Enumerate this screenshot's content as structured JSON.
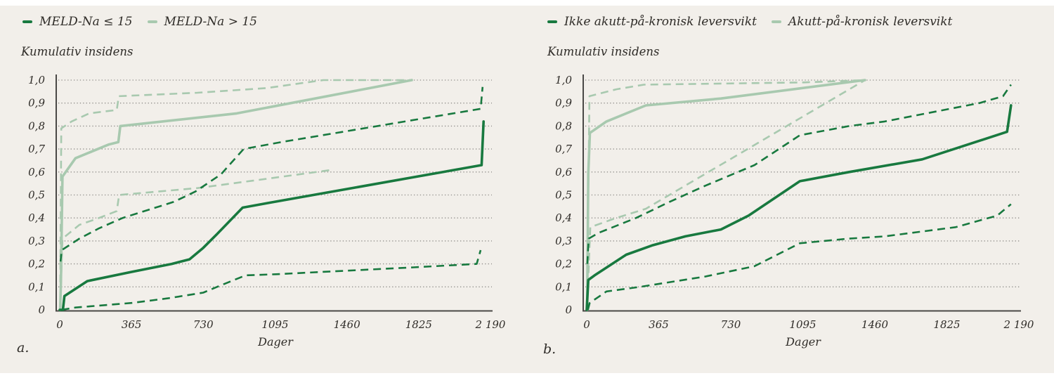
{
  "colors": {
    "page_background": "#ffffff",
    "panel_background": "#f2efea",
    "dark_green": "#18793f",
    "light_green": "#a8c9af",
    "gridline": "#8f8d89",
    "axis": "#4a4846",
    "text": "#2f2c28"
  },
  "panel_labels": {
    "a": "a.",
    "b": "b."
  },
  "chart_data": [
    {
      "type": "line",
      "id": "a",
      "panel_label": "a.",
      "ylabel": "Kumulativ insidens",
      "xlabel": "Dager",
      "xlim": [
        0,
        2190
      ],
      "ylim": [
        0,
        1
      ],
      "grid": "horizontal-dotted",
      "x_ticks": [
        0,
        365,
        730,
        1095,
        1460,
        1825,
        2190
      ],
      "x_tick_labels": [
        "0",
        "365",
        "730",
        "1095",
        "1460",
        "1825",
        "2 190"
      ],
      "y_tick_labels": [
        "1,0",
        "0,9",
        "0,8",
        "0,7",
        "0,6",
        "0,5",
        "0,4",
        "0,3",
        "0,2",
        "0,1",
        "0"
      ],
      "legend": [
        {
          "label": "MELD-Na ≤ 15",
          "tone": "dark"
        },
        {
          "label": "MELD-Na > 15",
          "tone": "light"
        }
      ],
      "series": [
        {
          "group": "MELD-Na > 15",
          "role": "ci-upper",
          "tone": "light",
          "line": "dashed",
          "points": [
            [
              3,
              0.12
            ],
            [
              8,
              0.79
            ],
            [
              60,
              0.82
            ],
            [
              150,
              0.855
            ],
            [
              290,
              0.87
            ],
            [
              300,
              0.93
            ],
            [
              700,
              0.945
            ],
            [
              1050,
              0.965
            ],
            [
              1340,
              1.0
            ],
            [
              1790,
              1.0
            ]
          ]
        },
        {
          "group": "MELD-Na > 15",
          "role": "estimate",
          "tone": "light",
          "line": "solid",
          "points": [
            [
              2,
              0
            ],
            [
              6,
              0.12
            ],
            [
              14,
              0.58
            ],
            [
              80,
              0.66
            ],
            [
              250,
              0.72
            ],
            [
              298,
              0.73
            ],
            [
              308,
              0.8
            ],
            [
              900,
              0.855
            ],
            [
              1790,
              1.0
            ]
          ]
        },
        {
          "group": "MELD-Na > 15",
          "role": "ci-lower",
          "tone": "light",
          "line": "dashed",
          "points": [
            [
              4,
              0.05
            ],
            [
              14,
              0.31
            ],
            [
              100,
              0.37
            ],
            [
              200,
              0.4
            ],
            [
              290,
              0.43
            ],
            [
              302,
              0.5
            ],
            [
              700,
              0.53
            ],
            [
              1050,
              0.57
            ],
            [
              1390,
              0.61
            ]
          ]
        },
        {
          "group": "MELD-Na ≤ 15",
          "role": "ci-upper",
          "tone": "dark",
          "line": "dashed",
          "points": [
            [
              4,
              0.21
            ],
            [
              10,
              0.26
            ],
            [
              100,
              0.31
            ],
            [
              200,
              0.355
            ],
            [
              320,
              0.4
            ],
            [
              580,
              0.47
            ],
            [
              690,
              0.515
            ],
            [
              820,
              0.59
            ],
            [
              935,
              0.7
            ],
            [
              1125,
              0.73
            ],
            [
              2140,
              0.875
            ],
            [
              2150,
              0.97
            ]
          ]
        },
        {
          "group": "MELD-Na ≤ 15",
          "role": "estimate",
          "tone": "dark",
          "line": "solid",
          "points": [
            [
              0,
              0
            ],
            [
              16,
              0
            ],
            [
              24,
              0.06
            ],
            [
              140,
              0.125
            ],
            [
              365,
              0.165
            ],
            [
              570,
              0.2
            ],
            [
              660,
              0.22
            ],
            [
              730,
              0.27
            ],
            [
              800,
              0.33
            ],
            [
              930,
              0.445
            ],
            [
              1060,
              0.465
            ],
            [
              2145,
              0.63
            ],
            [
              2155,
              0.82
            ]
          ]
        },
        {
          "group": "MELD-Na ≤ 15",
          "role": "ci-lower",
          "tone": "dark",
          "line": "dashed",
          "points": [
            [
              10,
              0
            ],
            [
              80,
              0.01
            ],
            [
              365,
              0.03
            ],
            [
              550,
              0.05
            ],
            [
              730,
              0.075
            ],
            [
              800,
              0.1
            ],
            [
              945,
              0.15
            ],
            [
              1100,
              0.155
            ],
            [
              1800,
              0.185
            ],
            [
              2120,
              0.2
            ],
            [
              2140,
              0.26
            ]
          ]
        }
      ]
    },
    {
      "type": "line",
      "id": "b",
      "panel_label": "b.",
      "ylabel": "Kumulativ insidens",
      "xlabel": "Dager",
      "xlim": [
        0,
        2190
      ],
      "ylim": [
        0,
        1
      ],
      "grid": "horizontal-dotted",
      "x_ticks": [
        0,
        365,
        730,
        1095,
        1460,
        1825,
        2190
      ],
      "x_tick_labels": [
        "0",
        "365",
        "730",
        "1095",
        "1460",
        "1825",
        "2 190"
      ],
      "y_tick_labels": [
        "1,0",
        "0,9",
        "0,8",
        "0,7",
        "0,6",
        "0,5",
        "0,4",
        "0,3",
        "0,2",
        "0,1",
        "0"
      ],
      "legend": [
        {
          "label": "Ikke akutt-på-kronisk leversvikt",
          "tone": "dark"
        },
        {
          "label": "Akutt-på-kronisk leversvikt",
          "tone": "light"
        }
      ],
      "series": [
        {
          "group": "Akutt-på-kronisk leversvikt",
          "role": "ci-upper",
          "tone": "light",
          "line": "dashed",
          "points": [
            [
              4,
              0.21
            ],
            [
              14,
              0.93
            ],
            [
              150,
              0.96
            ],
            [
              290,
              0.98
            ],
            [
              700,
              0.985
            ],
            [
              1100,
              0.99
            ],
            [
              1410,
              1.0
            ]
          ]
        },
        {
          "group": "Akutt-på-kronisk leversvikt",
          "role": "estimate",
          "tone": "light",
          "line": "solid",
          "points": [
            [
              2,
              0
            ],
            [
              8,
              0.59
            ],
            [
              16,
              0.77
            ],
            [
              100,
              0.82
            ],
            [
              300,
              0.89
            ],
            [
              680,
              0.92
            ],
            [
              1410,
              1.0
            ]
          ]
        },
        {
          "group": "Akutt-på-kronisk leversvikt",
          "role": "ci-lower",
          "tone": "light",
          "line": "dashed",
          "points": [
            [
              4,
              0.05
            ],
            [
              18,
              0.36
            ],
            [
              150,
              0.4
            ],
            [
              300,
              0.44
            ],
            [
              1410,
              1.0
            ]
          ]
        },
        {
          "group": "Ikke akutt-på-kronisk leversvikt",
          "role": "ci-upper",
          "tone": "dark",
          "line": "dashed",
          "points": [
            [
              3,
              0.2
            ],
            [
              10,
              0.31
            ],
            [
              60,
              0.335
            ],
            [
              250,
              0.4
            ],
            [
              420,
              0.47
            ],
            [
              600,
              0.54
            ],
            [
              850,
              0.63
            ],
            [
              1080,
              0.76
            ],
            [
              1330,
              0.8
            ],
            [
              1510,
              0.82
            ],
            [
              1990,
              0.9
            ],
            [
              2110,
              0.93
            ],
            [
              2150,
              0.98
            ]
          ]
        },
        {
          "group": "Ikke akutt-på-kronisk leversvikt",
          "role": "estimate",
          "tone": "dark",
          "line": "solid",
          "points": [
            [
              0,
              0
            ],
            [
              8,
              0.13
            ],
            [
              40,
              0.15
            ],
            [
              200,
              0.24
            ],
            [
              330,
              0.28
            ],
            [
              500,
              0.32
            ],
            [
              680,
              0.35
            ],
            [
              820,
              0.41
            ],
            [
              1080,
              0.56
            ],
            [
              1330,
              0.6
            ],
            [
              1700,
              0.655
            ],
            [
              2130,
              0.775
            ],
            [
              2150,
              0.89
            ]
          ]
        },
        {
          "group": "Ikke akutt-på-kronisk leversvikt",
          "role": "ci-lower",
          "tone": "dark",
          "line": "dashed",
          "points": [
            [
              6,
              0
            ],
            [
              15,
              0.03
            ],
            [
              100,
              0.08
            ],
            [
              270,
              0.1
            ],
            [
              600,
              0.145
            ],
            [
              850,
              0.19
            ],
            [
              1080,
              0.29
            ],
            [
              1330,
              0.31
            ],
            [
              1510,
              0.32
            ],
            [
              1870,
              0.36
            ],
            [
              2080,
              0.41
            ],
            [
              2150,
              0.46
            ]
          ]
        }
      ]
    }
  ]
}
